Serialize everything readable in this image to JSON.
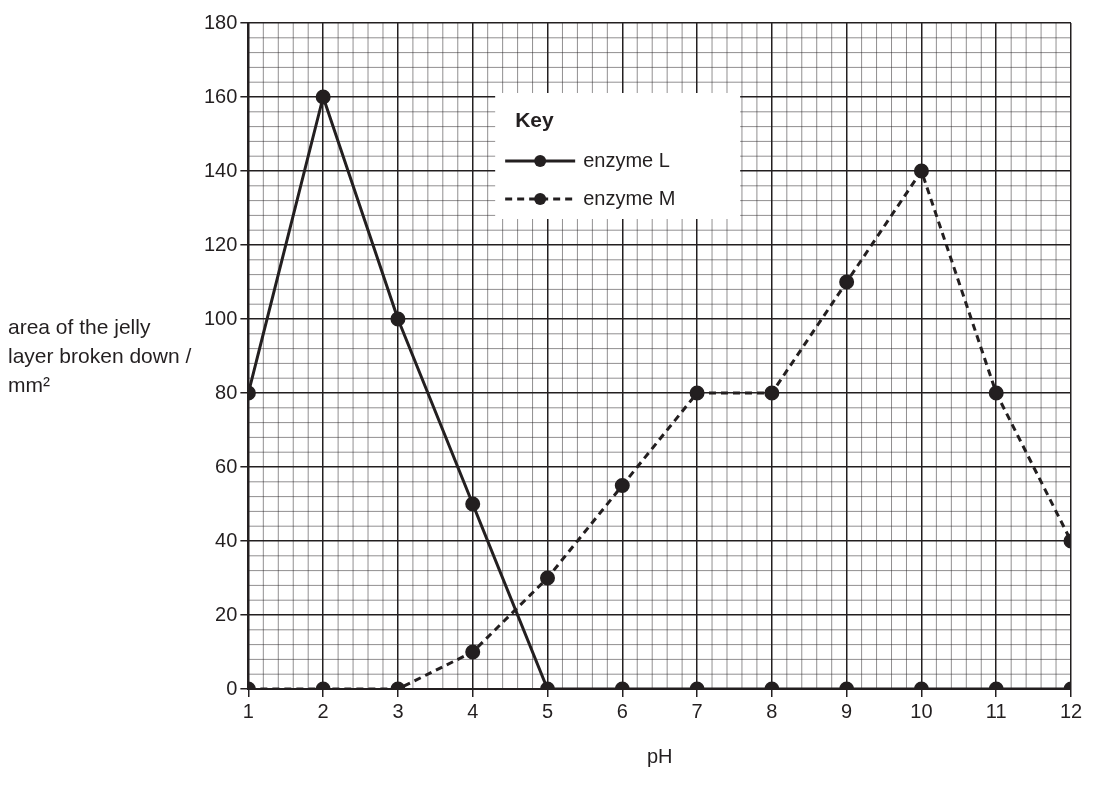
{
  "chart_data": {
    "type": "line",
    "xlabel": "pH",
    "ylabel": "area of the jelly layer broken down / mm²",
    "legend_title": "Key",
    "legend": "top",
    "grid": true,
    "marker": "circle",
    "x": [
      1,
      2,
      3,
      4,
      5,
      6,
      7,
      8,
      9,
      10,
      11,
      12
    ],
    "xlim": [
      1,
      12
    ],
    "xticks": [
      1,
      2,
      3,
      4,
      5,
      6,
      7,
      8,
      9,
      10,
      11,
      12
    ],
    "ylim": [
      0,
      180
    ],
    "yticks": [
      0,
      20,
      40,
      60,
      80,
      100,
      120,
      140,
      160,
      180
    ],
    "series": [
      {
        "name": "enzyme L",
        "color": "#231f20",
        "line_style": "solid",
        "values": [
          80,
          160,
          100,
          50,
          0,
          0,
          0,
          0,
          0,
          0,
          0,
          0
        ]
      },
      {
        "name": "enzyme M",
        "color": "#231f20",
        "line_style": "dashed",
        "values": [
          0,
          0,
          0,
          10,
          30,
          55,
          80,
          80,
          110,
          140,
          80,
          40
        ]
      }
    ]
  }
}
